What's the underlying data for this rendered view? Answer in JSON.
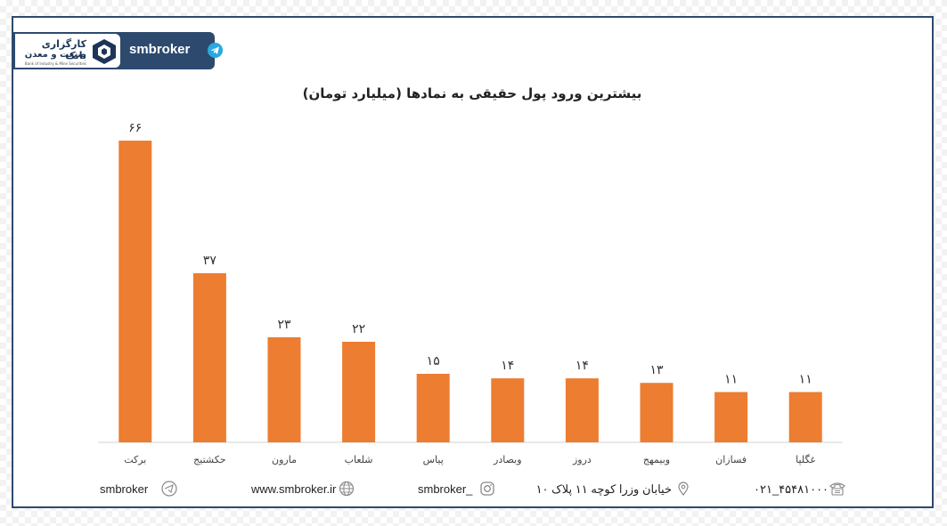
{
  "brand": {
    "logo_line1": "کارگزاری بانک",
    "logo_line2": "صنعت و معدن",
    "logo_line3": "Bank of Industry & Mine Securities",
    "name": "smbroker",
    "logo_icon": "cube-logo-icon",
    "telegram_icon": "telegram-icon",
    "colors": {
      "navy": "#2d4a6e",
      "bar": "#ed7d31",
      "telegram": "#29a9e0"
    }
  },
  "chart_data": {
    "type": "bar",
    "title": "بیشترین ورود پول حقیقی به نمادها (میلیارد تومان)",
    "xlabel": "",
    "ylabel": "",
    "categories": [
      "برکت",
      "حکشتیج",
      "مارون",
      "شلعاب",
      "پیاس",
      "وبصادر",
      "دروز",
      "وبیمهج",
      "فسازان",
      "غگلپا"
    ],
    "values": [
      66,
      37,
      23,
      22,
      15,
      14,
      14,
      13,
      11,
      11
    ],
    "value_labels": [
      "۶۶",
      "۳۷",
      "۲۳",
      "۲۲",
      "۱۵",
      "۱۴",
      "۱۴",
      "۱۳",
      "۱۱",
      "۱۱"
    ],
    "ylim": [
      0,
      66
    ],
    "grid": false,
    "legend": "none",
    "bar_color": "#ed7d31"
  },
  "footer": {
    "telegram": {
      "text": "smbroker",
      "icon": "telegram-outline-icon"
    },
    "website": {
      "text": "www.smbroker.ir",
      "icon": "globe-icon"
    },
    "instagram": {
      "text": "smbroker_",
      "icon": "instagram-icon"
    },
    "address": {
      "text": "خیابان وزرا کوچه ۱۱ پلاک ۱۰",
      "icon": "location-pin-icon"
    },
    "phone": {
      "text": "۰۲۱_۴۵۴۸۱۰۰۰",
      "icon": "telephone-icon"
    }
  }
}
